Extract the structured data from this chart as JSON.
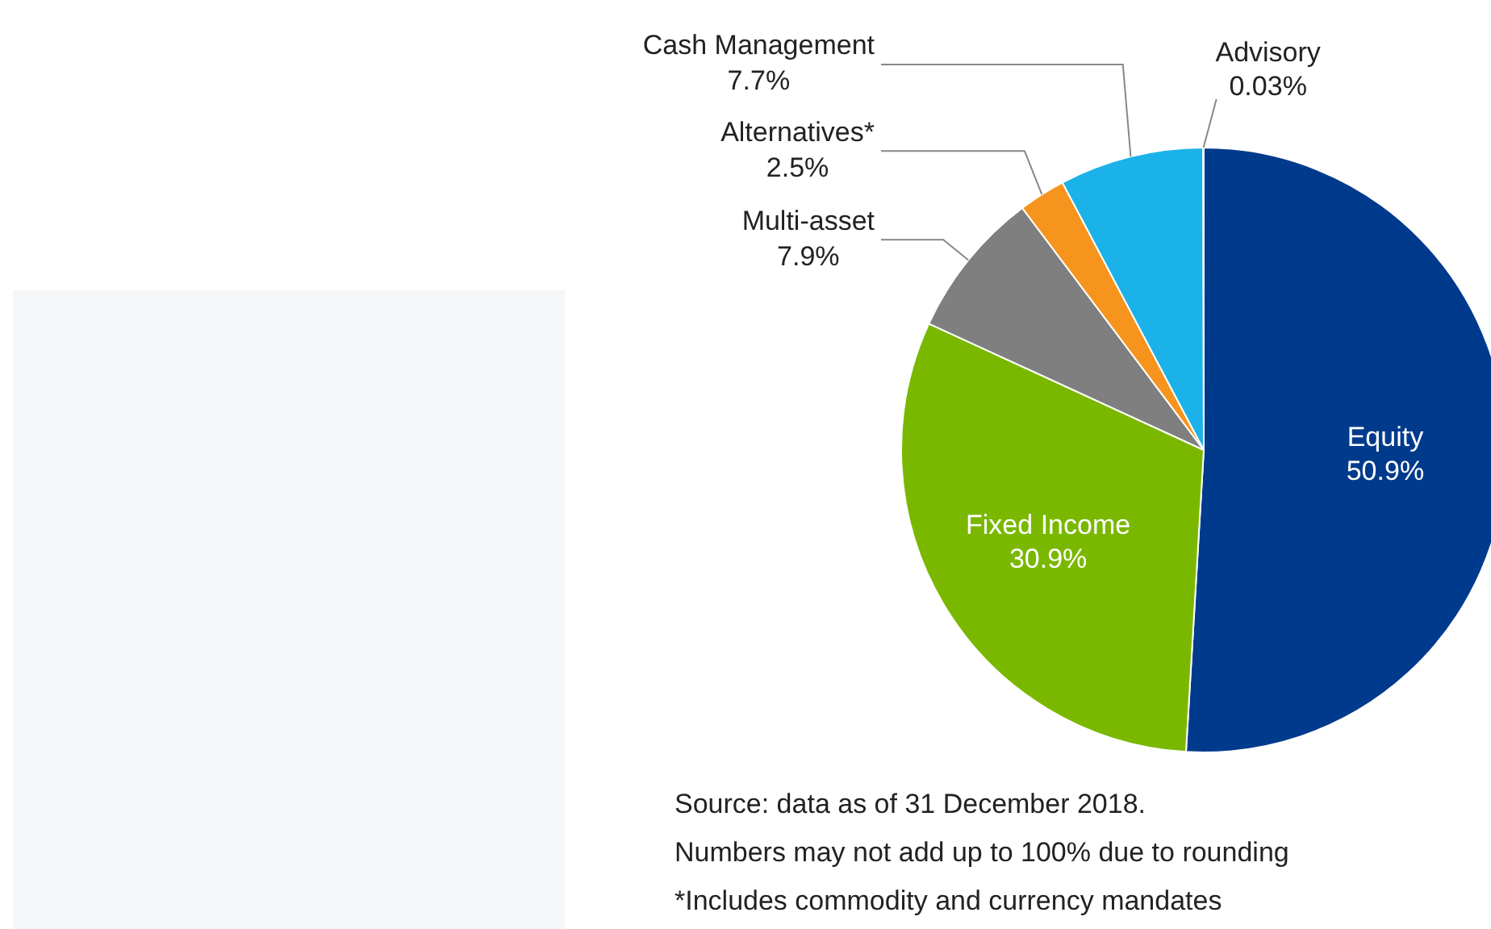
{
  "chart_data": {
    "type": "pie",
    "categories": [
      "Equity",
      "Fixed Income",
      "Multi-asset",
      "Alternatives*",
      "Cash Management",
      "Advisory"
    ],
    "values": [
      50.9,
      30.9,
      7.9,
      2.5,
      7.7,
      0.03
    ],
    "value_labels": [
      "50.9%",
      "30.9%",
      "7.9%",
      "2.5%",
      "7.7%",
      "0.03%"
    ],
    "colors": [
      "#003a8c",
      "#7ab800",
      "#7f7f7f",
      "#f7941d",
      "#1ab2e8",
      "#00264d"
    ],
    "legend": false,
    "annotations": [
      "Source: data as of 31 December 2018.",
      "Numbers may not add up to 100% due to rounding",
      "*Includes commodity and currency mandates"
    ]
  }
}
